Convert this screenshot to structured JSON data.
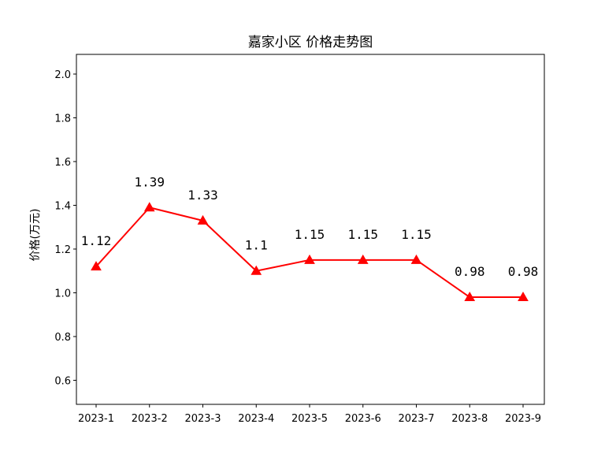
{
  "chart_data": {
    "type": "line",
    "title": "嘉家小区 价格走势图",
    "xlabel": "",
    "ylabel": "价格(万元)",
    "categories": [
      "2023-1",
      "2023-2",
      "2023-3",
      "2023-4",
      "2023-5",
      "2023-6",
      "2023-7",
      "2023-8",
      "2023-9"
    ],
    "series": [
      {
        "values": [
          1.12,
          1.39,
          1.33,
          1.1,
          1.15,
          1.15,
          1.15,
          0.98,
          0.98
        ],
        "data_labels": [
          "1.12",
          "1.39",
          "1.33",
          "1.1",
          "1.15",
          "1.15",
          "1.15",
          "0.98",
          "0.98"
        ],
        "color": "#ff0000",
        "marker": "triangle-up"
      }
    ],
    "ylim": [
      0.49,
      2.09
    ],
    "yticks": [
      0.6,
      0.8,
      1.0,
      1.2,
      1.4,
      1.6,
      1.8,
      2.0
    ],
    "ytick_labels": [
      "0.6",
      "0.8",
      "1.0",
      "1.2",
      "1.4",
      "1.6",
      "1.8",
      "2.0"
    ],
    "grid": false,
    "legend": "none"
  }
}
